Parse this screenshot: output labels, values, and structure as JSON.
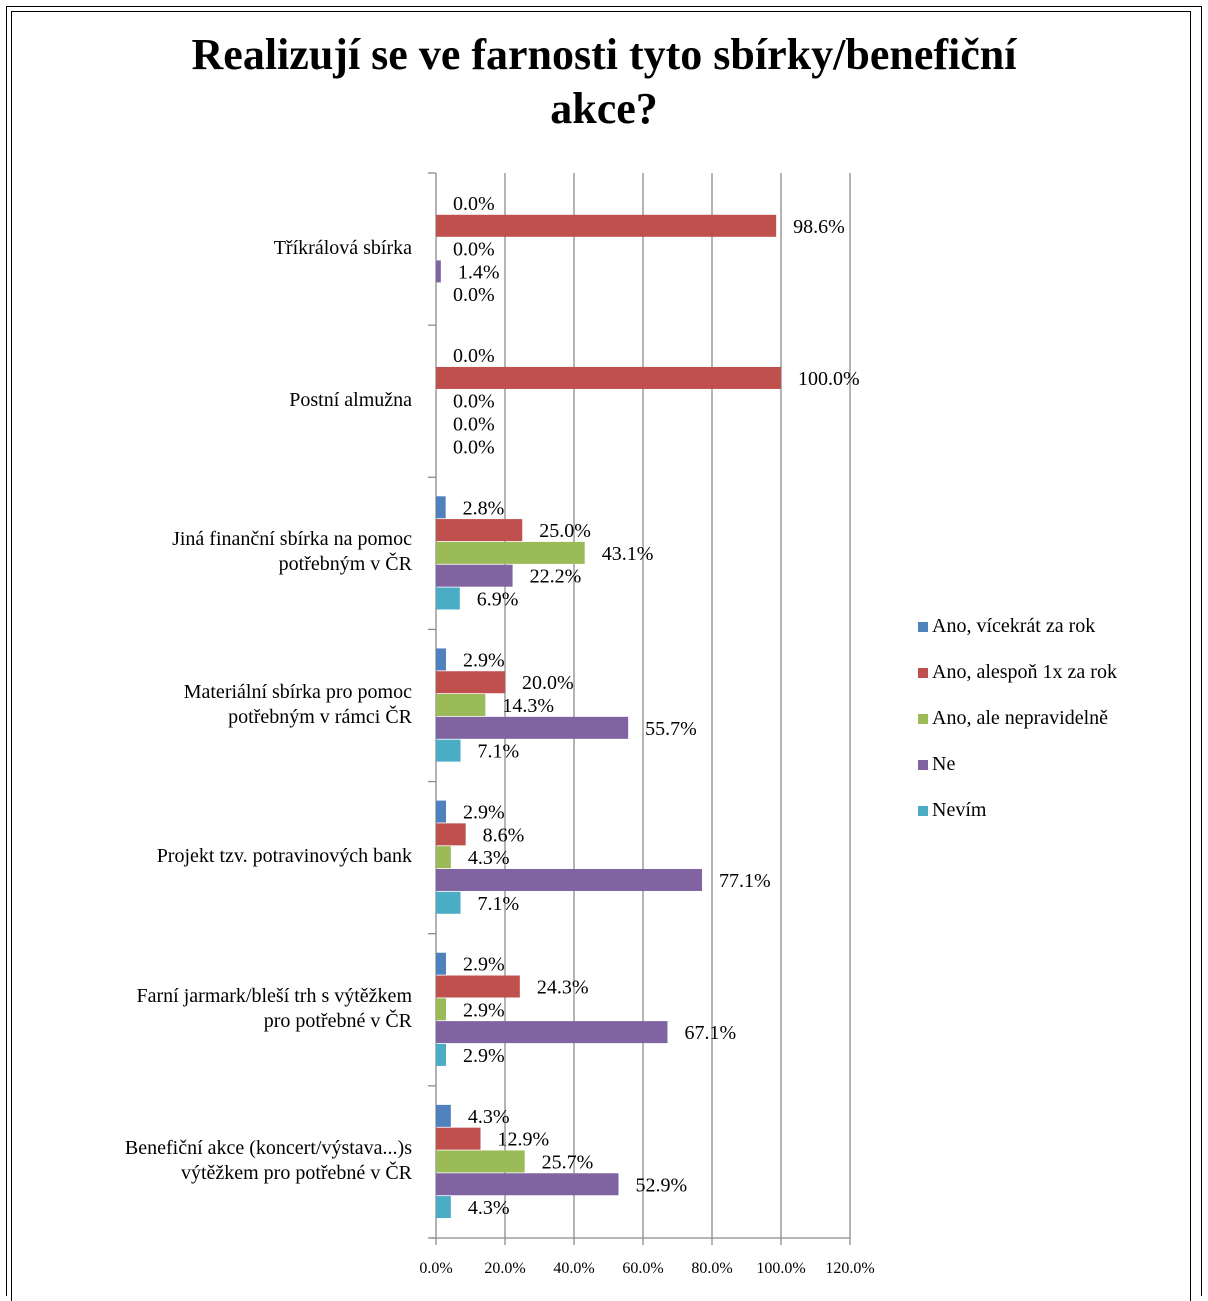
{
  "chart_data": {
    "type": "bar",
    "orientation": "horizontal",
    "title": "Realizují se ve farnosti tyto sbírky/benefiční akce?",
    "title_lines": [
      "Realizují se ve farnosti tyto sbírky/benefiční",
      "akce?"
    ],
    "categories": [
      "Tříkrálová sbírka",
      "Postní almužna",
      "Jiná finanční sbírka na pomoc potřebným v ČR",
      "Materiální sbírka pro pomoc potřebným v rámci ČR",
      "Projekt tzv. potravinových bank",
      "Farní jarmark/bleší trh s výtěžkem pro potřebné v ČR",
      "Benefiční akce (koncert/výstava...)s výtěžkem pro potřebné v ČR"
    ],
    "category_lines": [
      [
        "Tříkrálová sbírka"
      ],
      [
        "Postní almužna"
      ],
      [
        "Jiná finanční sbírka na pomoc",
        "potřebným v ČR"
      ],
      [
        "Materiální sbírka pro pomoc",
        "potřebným v rámci ČR"
      ],
      [
        "Projekt tzv. potravinových bank"
      ],
      [
        "Farní jarmark/bleší trh s výtěžkem",
        "pro potřebné v ČR"
      ],
      [
        "Benefiční akce (koncert/výstava...)s",
        "výtěžkem pro potřebné v ČR"
      ]
    ],
    "series": [
      {
        "name": "Ano, vícekrát za rok",
        "color": "#4F81BD",
        "values": [
          0.0,
          0.0,
          2.8,
          2.9,
          2.9,
          2.9,
          4.3
        ]
      },
      {
        "name": "Ano, alespoň 1x za rok",
        "color": "#C0504D",
        "values": [
          98.6,
          100.0,
          25.0,
          20.0,
          8.6,
          24.3,
          12.9
        ]
      },
      {
        "name": "Ano, ale nepravidelně",
        "color": "#9BBB59",
        "values": [
          0.0,
          0.0,
          43.1,
          14.3,
          4.3,
          2.9,
          25.7
        ]
      },
      {
        "name": "Ne",
        "color": "#8064A2",
        "values": [
          1.4,
          0.0,
          22.2,
          55.7,
          77.1,
          67.1,
          52.9
        ]
      },
      {
        "name": "Nevím",
        "color": "#4BACC6",
        "values": [
          0.0,
          0.0,
          6.9,
          7.1,
          7.1,
          2.9,
          4.3
        ]
      }
    ],
    "data_labels": [
      [
        "0.0%",
        "0.0%",
        "2.8%",
        "2.9%",
        "2.9%",
        "2.9%",
        "4.3%"
      ],
      [
        "98.6%",
        "100.0%",
        "25.0%",
        "20.0%",
        "8.6%",
        "24.3%",
        "12.9%"
      ],
      [
        "0.0%",
        "0.0%",
        "43.1%",
        "14.3%",
        "4.3%",
        "2.9%",
        "25.7%"
      ],
      [
        "1.4%",
        "0.0%",
        "22.2%",
        "55.7%",
        "77.1%",
        "67.1%",
        "52.9%"
      ],
      [
        "0.0%",
        "0.0%",
        "6.9%",
        "7.1%",
        "7.1%",
        "2.9%",
        "4.3%"
      ]
    ],
    "x_ticks": [
      "0.0%",
      "20.0%",
      "40.0%",
      "60.0%",
      "80.0%",
      "100.0%",
      "120.0%"
    ],
    "xlim": [
      0,
      120
    ],
    "xlabel": "",
    "ylabel": "",
    "grid": "vertical",
    "legend_position": "right"
  }
}
